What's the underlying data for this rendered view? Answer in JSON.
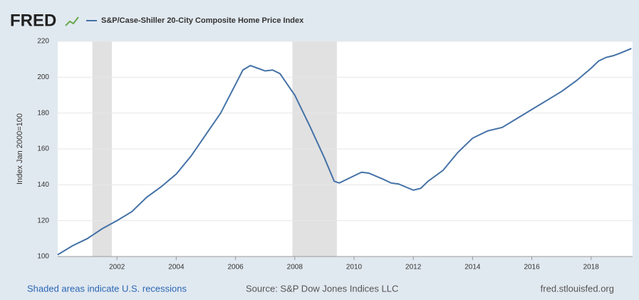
{
  "chart_data": {
    "type": "line",
    "logo": "FRED",
    "y_label": "Index Jan 2000=100",
    "notes": {
      "recessions": "Shaded areas indicate U.S. recessions",
      "source": "Source: S&P Dow Jones Indices LLC",
      "site": "fred.stlouisfed.org"
    },
    "x": [
      2000.0,
      2000.5,
      2001.0,
      2001.5,
      2002.0,
      2002.5,
      2003.0,
      2003.5,
      2004.0,
      2004.5,
      2005.0,
      2005.5,
      2006.0,
      2006.25,
      2006.5,
      2006.75,
      2007.0,
      2007.25,
      2007.5,
      2008.0,
      2008.5,
      2009.0,
      2009.33,
      2009.5,
      2010.0,
      2010.25,
      2010.5,
      2011.0,
      2011.25,
      2011.5,
      2012.0,
      2012.25,
      2012.5,
      2013.0,
      2013.5,
      2014.0,
      2014.5,
      2015.0,
      2015.5,
      2016.0,
      2016.5,
      2017.0,
      2017.5,
      2018.0,
      2018.25,
      2018.5,
      2018.75,
      2019.0,
      2019.36
    ],
    "series": [
      {
        "name": "S&P/Case-Shiller 20-City Composite Home Price Index",
        "color": "#4572a7",
        "values": [
          101,
          106,
          110,
          115.5,
          120,
          125,
          133,
          139,
          146,
          156,
          168,
          180,
          196,
          204,
          206.5,
          205,
          203.5,
          204,
          202,
          190,
          173,
          155,
          142,
          141,
          145,
          147,
          146.5,
          143,
          141,
          140.5,
          137,
          138,
          142,
          148,
          158,
          166,
          170,
          172,
          177,
          182,
          187,
          192,
          198,
          205,
          209,
          211,
          212,
          213.5,
          216
        ]
      }
    ],
    "recessions": [
      [
        2001.17,
        2001.83
      ],
      [
        2007.92,
        2009.42
      ]
    ],
    "xlim": [
      2000,
      2019.4
    ],
    "xticks": [
      2002,
      2004,
      2006,
      2008,
      2010,
      2012,
      2014,
      2016,
      2018
    ],
    "ylim": [
      100,
      220
    ],
    "yticks": [
      100,
      120,
      140,
      160,
      180,
      200,
      220
    ],
    "grid": true
  }
}
